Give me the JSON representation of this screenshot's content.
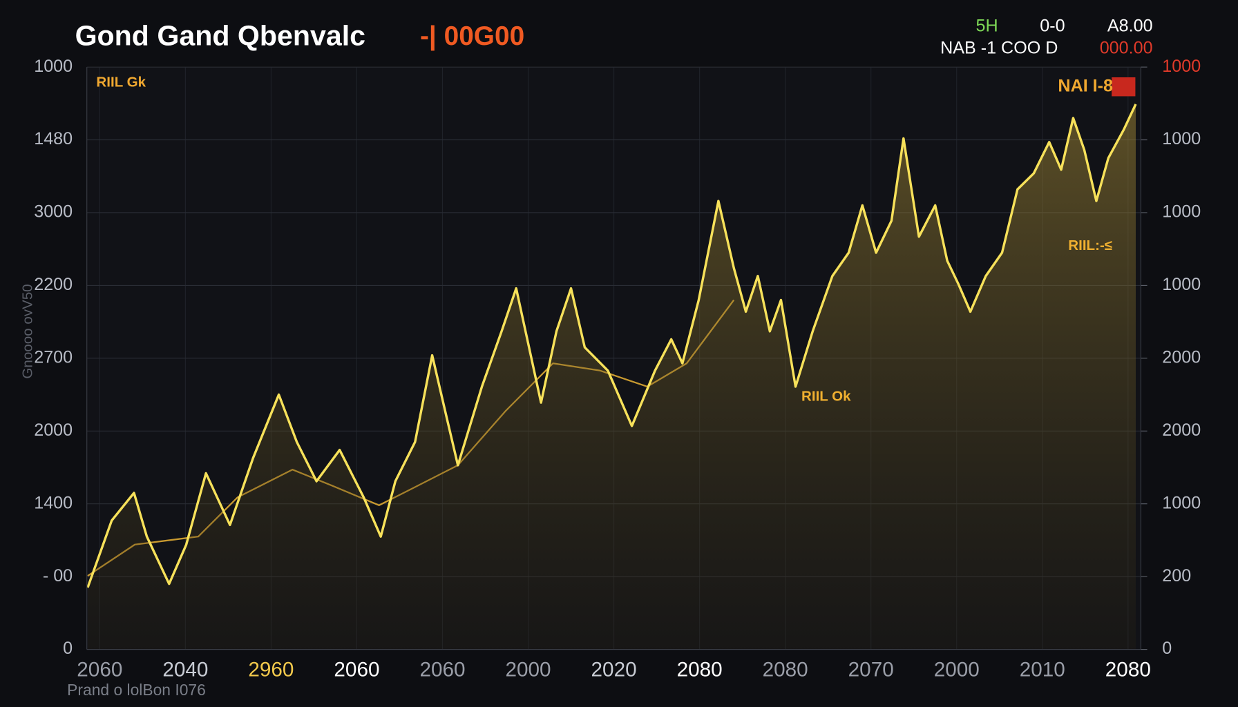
{
  "chart_data": {
    "type": "line",
    "title": "Gond Gand Qbenvalc",
    "title_suffix": "-| 00G00",
    "y_label": "Gnoooo ovV50",
    "footnote": "Prand o lolBon I076",
    "stats": [
      {
        "text": "5H",
        "color": "#7ed957"
      },
      {
        "text": "0-0",
        "color": "#ffffff"
      },
      {
        "text": "A8.00",
        "color": "#ffffff"
      },
      {
        "text": "NAB -1 COO D",
        "color": "#ffffff"
      },
      {
        "text": "000.00",
        "color": "#e03a2a"
      }
    ],
    "annotations": [
      {
        "text": "RIIL Gk",
        "color": "#f0a830"
      },
      {
        "text": "NAI I-8",
        "color": "#f0a830"
      },
      {
        "text": "RIIL:-≤",
        "color": "#f0b030"
      },
      {
        "text": "RIIL Ok",
        "color": "#f0b030"
      }
    ],
    "xlim": [
      -0.15,
      12.15
    ],
    "xticks": [
      {
        "value": 0,
        "label": "2060",
        "color": "#9a9ea8"
      },
      {
        "value": 1,
        "label": "2040",
        "color": "#c8ccd4"
      },
      {
        "value": 2,
        "label": "2960",
        "color": "#f2c94c"
      },
      {
        "value": 3,
        "label": "2060",
        "color": "#ffffff"
      },
      {
        "value": 4,
        "label": "2060",
        "color": "#9a9ea8"
      },
      {
        "value": 5,
        "label": "2000",
        "color": "#9a9ea8"
      },
      {
        "value": 6,
        "label": "2020",
        "color": "#c8ccd4"
      },
      {
        "value": 7,
        "label": "2080",
        "color": "#ffffff"
      },
      {
        "value": 8,
        "label": "2080",
        "color": "#9a9ea8"
      },
      {
        "value": 9,
        "label": "2070",
        "color": "#9a9ea8"
      },
      {
        "value": 10,
        "label": "2000",
        "color": "#9a9ea8"
      },
      {
        "value": 11,
        "label": "2010",
        "color": "#9a9ea8"
      },
      {
        "value": 12,
        "label": "2080",
        "color": "#ffffff"
      }
    ],
    "ylim": [
      0,
      8
    ],
    "yticks": [
      {
        "value": 8,
        "label": "1000"
      },
      {
        "value": 7,
        "label": "1480"
      },
      {
        "value": 6,
        "label": "3000"
      },
      {
        "value": 5,
        "label": "2200"
      },
      {
        "value": 4,
        "label": "2700"
      },
      {
        "value": 3,
        "label": "2000"
      },
      {
        "value": 2,
        "label": "1400"
      },
      {
        "value": 1,
        "label": "- 00"
      },
      {
        "value": 0,
        "label": "0"
      }
    ],
    "y2lim": [
      0,
      8
    ],
    "y2ticks": [
      {
        "value": 8,
        "label": "1000",
        "color": "#e03a2a"
      },
      {
        "value": 7,
        "label": "1000"
      },
      {
        "value": 6,
        "label": "1000"
      },
      {
        "value": 5,
        "label": "1000"
      },
      {
        "value": 4,
        "label": "2000"
      },
      {
        "value": 3,
        "label": "2000"
      },
      {
        "value": 2,
        "label": "1000"
      },
      {
        "value": 1,
        "label": "200"
      },
      {
        "value": 0,
        "label": "0"
      }
    ],
    "grid": true,
    "series": [
      {
        "color": "#f7e15a",
        "x": [
          -0.14,
          0.14,
          0.4,
          0.55,
          0.81,
          1.01,
          1.24,
          1.52,
          1.79,
          2.09,
          2.3,
          2.53,
          2.8,
          3.08,
          3.28,
          3.45,
          3.68,
          3.88,
          4.05,
          4.18,
          4.46,
          4.69,
          4.86,
          5.01,
          5.15,
          5.33,
          5.5,
          5.66,
          5.93,
          6.21,
          6.48,
          6.67,
          6.8,
          6.99,
          7.22,
          7.4,
          7.54,
          7.68,
          7.82,
          7.95,
          8.12,
          8.32,
          8.55,
          8.74,
          8.9,
          9.06,
          9.24,
          9.38,
          9.56,
          9.75,
          9.89,
          10.02,
          10.16,
          10.34,
          10.53,
          10.71,
          10.9,
          11.08,
          11.22,
          11.36,
          11.49,
          11.63,
          11.77,
          11.95,
          12.09
        ],
        "values": [
          0.85,
          1.77,
          2.15,
          1.55,
          0.9,
          1.44,
          2.42,
          1.71,
          2.63,
          3.5,
          2.85,
          2.31,
          2.74,
          2.09,
          1.55,
          2.31,
          2.85,
          4.04,
          3.18,
          2.53,
          3.61,
          4.37,
          4.96,
          4.15,
          3.39,
          4.37,
          4.96,
          4.15,
          3.83,
          3.07,
          3.83,
          4.26,
          3.93,
          4.8,
          6.16,
          5.24,
          4.64,
          5.13,
          4.37,
          4.8,
          3.61,
          4.37,
          5.13,
          5.45,
          6.1,
          5.45,
          5.89,
          7.02,
          5.67,
          6.1,
          5.34,
          5.02,
          4.64,
          5.13,
          5.45,
          6.32,
          6.54,
          6.97,
          6.59,
          7.3,
          6.86,
          6.16,
          6.75,
          7.14,
          7.49
        ]
      },
      {
        "color": "#c99a30",
        "x": [
          -0.14,
          0.41,
          1.15,
          1.61,
          2.25,
          2.71,
          3.26,
          3.63,
          4.18,
          4.74,
          5.29,
          5.84,
          6.39,
          6.85,
          7.4
        ],
        "values": [
          1.01,
          1.44,
          1.55,
          2.09,
          2.47,
          2.25,
          1.98,
          2.2,
          2.53,
          3.28,
          3.93,
          3.83,
          3.61,
          3.93,
          4.8
        ]
      }
    ]
  }
}
